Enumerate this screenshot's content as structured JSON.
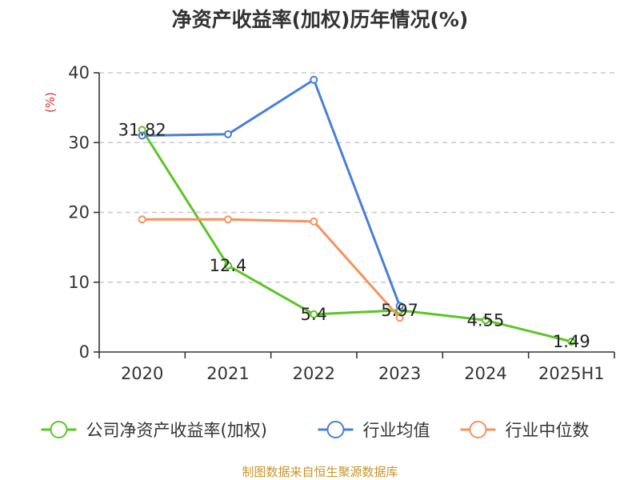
{
  "chart_data": {
    "type": "line",
    "title": "净资产收益率(加权)历年情况(%)",
    "ylabel": "(%)",
    "categories": [
      "2020",
      "2021",
      "2022",
      "2023",
      "2024",
      "2025H1"
    ],
    "ylim": [
      0,
      40
    ],
    "yticks": [
      "0",
      "10",
      "20",
      "30",
      "40"
    ],
    "grid": true,
    "legend_position": "bottom",
    "series": [
      {
        "name": "公司净资产收益率(加权)",
        "color": "#5cc427",
        "values": [
          31.82,
          12.4,
          5.4,
          5.97,
          4.55,
          1.49
        ],
        "labels": [
          "31.82",
          "12.4",
          "5.4",
          "5.97",
          "4.55",
          "1.49"
        ]
      },
      {
        "name": "行业均值",
        "color": "#4a7fd6",
        "values": [
          31.0,
          31.2,
          39.0,
          6.6,
          null,
          null
        ],
        "labels": []
      },
      {
        "name": "行业中位数",
        "color": "#f5925e",
        "values": [
          19.0,
          19.0,
          18.7,
          4.9,
          null,
          null
        ],
        "labels": []
      }
    ],
    "source": "制图数据来自恒生聚源数据库"
  }
}
